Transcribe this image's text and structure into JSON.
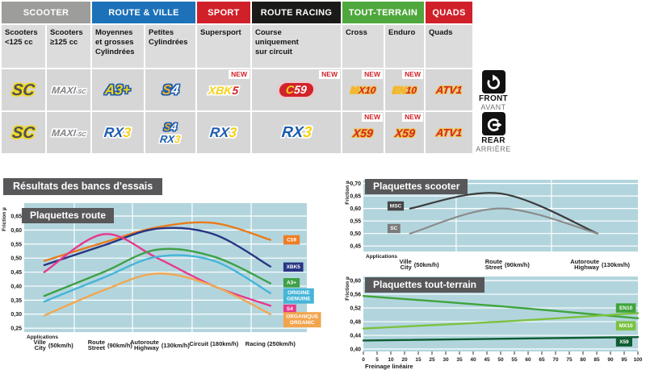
{
  "table": {
    "groups": [
      {
        "label": "SCOOTER",
        "color": "#9d9d9c",
        "span": 2
      },
      {
        "label": "ROUTE & VILLE",
        "color": "#1d71b8",
        "span": 2
      },
      {
        "label": "SPORT",
        "color": "#d0202a",
        "span": 1
      },
      {
        "label": "ROUTE RACING",
        "color": "#1a1a18",
        "span": 1
      },
      {
        "label": "TOUT-TERRAIN",
        "color": "#4fa83d",
        "span": 2
      },
      {
        "label": "QUADS",
        "color": "#d0202a",
        "span": 1
      }
    ],
    "subheaders": [
      "Scooters\n<125 cc",
      "Scooters\n≥125 cc",
      "Moyennes\net grosses\nCylindrées",
      "Petites\nCylindrées",
      "Supersport",
      "Course\nuniquement\nsur circuit",
      "Cross",
      "Enduro",
      "Quads"
    ],
    "new_label": "NEW",
    "rows": {
      "front": [
        {
          "new": false,
          "logos": [
            {
              "style": "sc",
              "ol": "ol-gold",
              "size": 20,
              "parts": [
                {
                  "t": "SC",
                  "c": "#4d5158"
                }
              ]
            }
          ]
        },
        {
          "new": false,
          "logos": [
            {
              "style": "maxisc",
              "ol": "ol-white",
              "size": 12,
              "parts": [
                {
                  "t": "MAXI",
                  "c": "#808285"
                },
                {
                  "t": "-SC",
                  "c": "#808285",
                  "small": true
                }
              ]
            }
          ]
        },
        {
          "new": false,
          "logos": [
            {
              "style": "a3",
              "ol": "ol-blue",
              "size": 17,
              "parts": [
                {
                  "t": "A3+",
                  "c": "#f7d117"
                }
              ]
            }
          ]
        },
        {
          "new": false,
          "logos": [
            {
              "style": "s4",
              "ol": "ol-blue",
              "size": 17,
              "parts": [
                {
                  "t": "S",
                  "c": "#f3b229"
                },
                {
                  "t": "4",
                  "c": "#ffffff"
                }
              ]
            }
          ]
        },
        {
          "new": true,
          "logos": [
            {
              "style": "xbk5",
              "ol": "ol-white",
              "size": 14,
              "parts": [
                {
                  "t": "XBK",
                  "c": "#f7d117"
                },
                {
                  "t": "5",
                  "c": "#d2232a"
                }
              ]
            }
          ]
        },
        {
          "new": true,
          "logos": [
            {
              "style": "c59",
              "ol": "",
              "size": 14,
              "parts": [
                {
                  "t": "C",
                  "c": "#f7d117"
                },
                {
                  "t": "59",
                  "c": "#ffffff"
                }
              ]
            }
          ]
        },
        {
          "new": true,
          "logos": [
            {
              "style": "mx10",
              "ol": "ol-goldline",
              "size": 12,
              "parts": [
                {
                  "t": "M",
                  "c": "#f3b229"
                },
                {
                  "t": "X10",
                  "c": "#d2232a"
                }
              ]
            }
          ]
        },
        {
          "new": true,
          "logos": [
            {
              "style": "en10",
              "ol": "ol-goldline",
              "size": 12,
              "parts": [
                {
                  "t": "EN",
                  "c": "#f3b229"
                },
                {
                  "t": "10",
                  "c": "#d2232a"
                }
              ]
            }
          ]
        },
        {
          "new": false,
          "logos": [
            {
              "style": "atv1",
              "ol": "ol-goldline",
              "size": 13,
              "parts": [
                {
                  "t": "ATV1",
                  "c": "#d2232a"
                }
              ]
            }
          ]
        }
      ],
      "rear": [
        {
          "new": false,
          "logos": [
            {
              "style": "sc",
              "ol": "ol-gold",
              "size": 20,
              "parts": [
                {
                  "t": "SC",
                  "c": "#4d5158"
                }
              ]
            }
          ]
        },
        {
          "new": false,
          "logos": [
            {
              "style": "maxisc",
              "ol": "ol-white",
              "size": 12,
              "parts": [
                {
                  "t": "MAXI",
                  "c": "#808285"
                },
                {
                  "t": "-SC",
                  "c": "#808285",
                  "small": true
                }
              ]
            }
          ]
        },
        {
          "new": false,
          "logos": [
            {
              "style": "rx3",
              "ol": "ol-white",
              "size": 17,
              "parts": [
                {
                  "t": "RX",
                  "c": "#1d5dae"
                },
                {
                  "t": "3",
                  "c": "#f7d117"
                }
              ]
            }
          ]
        },
        {
          "new": false,
          "logos": [
            {
              "style": "s4",
              "ol": "ol-blue",
              "size": 13,
              "parts": [
                {
                  "t": "S",
                  "c": "#f3b229"
                },
                {
                  "t": "4",
                  "c": "#ffffff"
                }
              ]
            },
            {
              "style": "rx3",
              "ol": "ol-white",
              "size": 13,
              "parts": [
                {
                  "t": "RX",
                  "c": "#1d5dae"
                },
                {
                  "t": "3",
                  "c": "#f7d117"
                }
              ]
            }
          ]
        },
        {
          "new": false,
          "logos": [
            {
              "style": "rx3",
              "ol": "ol-white",
              "size": 17,
              "parts": [
                {
                  "t": "RX",
                  "c": "#1d5dae"
                },
                {
                  "t": "3",
                  "c": "#f7d117"
                }
              ]
            }
          ]
        },
        {
          "new": false,
          "logos": [
            {
              "style": "rx3",
              "ol": "ol-white",
              "size": 19,
              "parts": [
                {
                  "t": "RX",
                  "c": "#1d5dae"
                },
                {
                  "t": "3",
                  "c": "#f7d117"
                }
              ]
            }
          ]
        },
        {
          "new": true,
          "logos": [
            {
              "style": "x59",
              "ol": "ol-goldline",
              "size": 14,
              "parts": [
                {
                  "t": "X59",
                  "c": "#d2232a"
                }
              ]
            }
          ]
        },
        {
          "new": true,
          "logos": [
            {
              "style": "x59",
              "ol": "ol-goldline",
              "size": 14,
              "parts": [
                {
                  "t": "X59",
                  "c": "#d2232a"
                }
              ]
            }
          ]
        },
        {
          "new": false,
          "logos": [
            {
              "style": "atv1",
              "ol": "ol-goldline",
              "size": 13,
              "parts": [
                {
                  "t": "ATV1",
                  "c": "#d2232a"
                }
              ]
            }
          ]
        }
      ]
    },
    "position": {
      "front": {
        "label": "FRONT",
        "sub": "AVANT"
      },
      "rear": {
        "label": "REAR",
        "sub": "ARRIÈRE"
      }
    }
  },
  "results_header": "Résultats des bancs d'essais",
  "chart_data": [
    {
      "id": "route",
      "type": "line",
      "title": "Plaquettes route",
      "ylabel": "Friction µ",
      "applications_label": "Applications",
      "ylim": [
        0.25,
        0.65
      ],
      "yticks": [
        0.65,
        0.6,
        0.55,
        0.5,
        0.45,
        0.4,
        0.35,
        0.3,
        0.25
      ],
      "categories": [
        {
          "l1": "Ville",
          "l2": "City",
          "speed": "(50km/h)"
        },
        {
          "l1": "Route",
          "l2": "Street",
          "speed": "(90km/h)"
        },
        {
          "l1": "Autoroute",
          "l2": "Highway",
          "speed": "(130km/h)"
        },
        {
          "l1": "Circuit",
          "l2": "",
          "speed": "(180km/h)"
        },
        {
          "l1": "Racing",
          "l2": "",
          "speed": "(250km/h)"
        }
      ],
      "series": [
        {
          "name": "C59",
          "color": "#e87b1c",
          "values": [
            0.49,
            0.555,
            0.61,
            0.625,
            0.565
          ],
          "label_lines": [
            "C59"
          ],
          "label_bg": "#ef7d23",
          "label_value": 0.565
        },
        {
          "name": "XBK5",
          "color": "#283583",
          "values": [
            0.475,
            0.545,
            0.605,
            0.585,
            0.47
          ],
          "label_lines": [
            "XBK5"
          ],
          "label_bg": "#283583",
          "label_value": 0.468
        },
        {
          "name": "S4",
          "color": "#e6398e",
          "values": [
            0.45,
            0.585,
            0.5,
            0.4,
            0.33
          ],
          "label_lines": [
            "S4"
          ],
          "label_bg": "#e6398e",
          "label_value": 0.318
        },
        {
          "name": "A3+",
          "color": "#3fa047",
          "values": [
            0.365,
            0.45,
            0.53,
            0.505,
            0.41
          ],
          "label_lines": [
            "A3+"
          ],
          "label_bg": "#3fa047",
          "label_value": 0.412
        },
        {
          "name": "ORIGINE GENUINE",
          "color": "#45b5d8",
          "values": [
            0.345,
            0.43,
            0.505,
            0.49,
            0.375
          ],
          "label_lines": [
            "ORIGINE",
            "GENUINE"
          ],
          "label_bg": "#45b5d8",
          "label_value": 0.365
        },
        {
          "name": "ORGANIQUE ORGANIC",
          "color": "#f0a852",
          "values": [
            0.295,
            0.385,
            0.445,
            0.4,
            0.3
          ],
          "label_lines": [
            "ORGANIQUE",
            "ORGANIC"
          ],
          "label_bg": "#f2a44c",
          "label_value": 0.28
        }
      ]
    },
    {
      "id": "scooter",
      "type": "line",
      "title": "Plaquettes scooter",
      "ylabel": "Friction µ",
      "applications_label": "Applications",
      "ylim": [
        0.45,
        0.7
      ],
      "yticks": [
        0.7,
        0.65,
        0.6,
        0.55,
        0.5,
        0.45
      ],
      "categories": [
        {
          "l1": "Ville",
          "l2": "City",
          "speed": "(50km/h)"
        },
        {
          "l1": "Route",
          "l2": "Street",
          "speed": "(90km/h)"
        },
        {
          "l1": "Autoroute",
          "l2": "Highway",
          "speed": "(130km/h)"
        }
      ],
      "series": [
        {
          "name": "MSC",
          "color": "#3c3c3c",
          "values": [
            0.6,
            0.66,
            0.5
          ],
          "label_lines": [
            "MSC"
          ],
          "label_bg": "#464646",
          "label_value": 0.61,
          "label_side": "start"
        },
        {
          "name": "SC",
          "color": "#8c8c8c",
          "values": [
            0.5,
            0.6,
            0.5
          ],
          "label_lines": [
            "SC"
          ],
          "label_bg": "#7b7b7b",
          "label_value": 0.52,
          "label_side": "start"
        }
      ]
    },
    {
      "id": "tt",
      "type": "line",
      "title": "Plaquettes tout-terrain",
      "ylabel": "Friction µ",
      "xlabel": "Freinage linéaire",
      "ylim": [
        0.4,
        0.6
      ],
      "yticks": [
        0.6,
        0.56,
        0.52,
        0.48,
        0.44,
        0.4
      ],
      "x_range": [
        0,
        100
      ],
      "x_ticks": [
        "0",
        "5",
        "10",
        "20",
        "15",
        "25",
        "30",
        "35",
        "40",
        "45",
        "50",
        "55",
        "60",
        "65",
        "70",
        "75",
        "80",
        "85",
        "90",
        "95",
        "100"
      ],
      "series": [
        {
          "name": "EN10",
          "color": "#3fa43c",
          "points": [
            [
              0,
              0.555
            ],
            [
              50,
              0.525
            ],
            [
              100,
              0.49
            ]
          ],
          "label_lines": [
            "EN10"
          ],
          "label_bg": "#3fa43c",
          "label_value": 0.52
        },
        {
          "name": "MX10",
          "color": "#7cc141",
          "points": [
            [
              0,
              0.46
            ],
            [
              50,
              0.48
            ],
            [
              100,
              0.505
            ]
          ],
          "label_lines": [
            "MX10"
          ],
          "label_bg": "#7cc141",
          "label_value": 0.468
        },
        {
          "name": "X59",
          "color": "#0e5c31",
          "points": [
            [
              0,
              0.425
            ],
            [
              100,
              0.435
            ]
          ],
          "label_lines": [
            "X59"
          ],
          "label_bg": "#0e5c31",
          "label_value": 0.421
        }
      ]
    }
  ]
}
